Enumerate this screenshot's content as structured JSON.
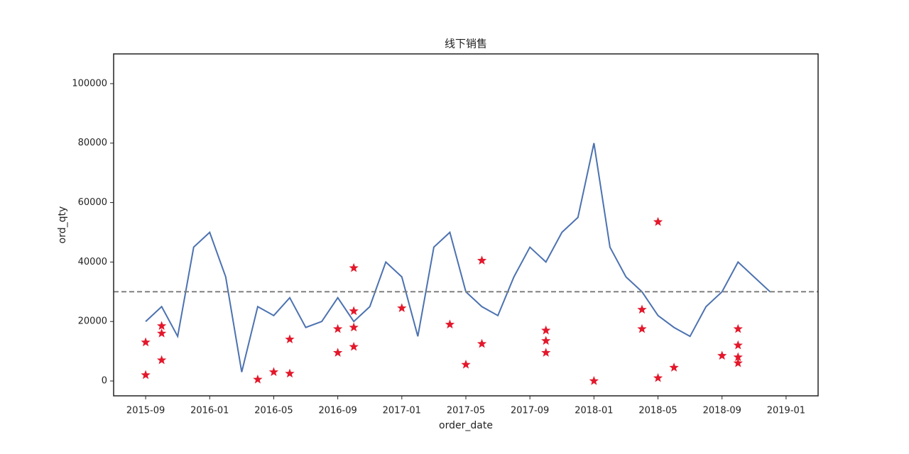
{
  "chart_data": {
    "type": "line",
    "title": "线下销售",
    "x_label": "order_date",
    "y_label": "ord_qty",
    "x": [
      "2015-09",
      "2015-10",
      "2015-11",
      "2015-12",
      "2016-01",
      "2016-02",
      "2016-03",
      "2016-04",
      "2016-05",
      "2016-06",
      "2016-07",
      "2016-08",
      "2016-09",
      "2016-10",
      "2016-11",
      "2016-12",
      "2017-01",
      "2017-02",
      "2017-03",
      "2017-04",
      "2017-05",
      "2017-06",
      "2017-07",
      "2017-08",
      "2017-09",
      "2017-10",
      "2017-11",
      "2017-12",
      "2018-01",
      "2018-02",
      "2018-03",
      "2018-04",
      "2018-05",
      "2018-06",
      "2018-07",
      "2018-08",
      "2018-09",
      "2018-10",
      "2018-11",
      "2018-12"
    ],
    "values": [
      20000,
      25000,
      15000,
      45000,
      50000,
      35000,
      3000,
      25000,
      22000,
      28000,
      18000,
      20000,
      28000,
      20000,
      25000,
      40000,
      35000,
      15000,
      45000,
      50000,
      30000,
      25000,
      22000,
      35000,
      45000,
      40000,
      50000,
      55000,
      80000,
      45000,
      35000,
      30000,
      22000,
      18000,
      15000,
      25000,
      30000,
      40000,
      35000,
      30000
    ],
    "color": "#4c72b0",
    "markers": {
      "color": "#e3182b",
      "x": [
        "2015-09",
        "2015-09",
        "2015-10",
        "2015-10",
        "2015-10",
        "2016-04",
        "2016-05",
        "2016-06",
        "2016-06",
        "2016-09",
        "2016-09",
        "2016-10",
        "2016-10",
        "2016-10",
        "2016-10",
        "2017-01",
        "2017-04",
        "2017-05",
        "2017-06",
        "2017-06",
        "2017-10",
        "2017-10",
        "2017-10",
        "2018-01",
        "2018-04",
        "2018-04",
        "2018-05",
        "2018-05",
        "2018-06",
        "2018-09",
        "2018-10",
        "2018-10",
        "2018-10",
        "2018-10"
      ],
      "values": [
        2000,
        13000,
        18500,
        16000,
        7000,
        500,
        3000,
        2500,
        14000,
        17500,
        9500,
        38000,
        23500,
        18000,
        11500,
        24500,
        19000,
        5500,
        12500,
        40500,
        17000,
        13500,
        9500,
        0,
        24000,
        17500,
        53500,
        1000,
        4500,
        8500,
        17500,
        12000,
        8000,
        6000
      ]
    },
    "hline": {
      "value": 30000,
      "color": "#808080"
    },
    "xlim": [
      "2015-07",
      "2019-03"
    ],
    "xticks": [
      "2015-09",
      "2016-01",
      "2016-05",
      "2016-09",
      "2017-01",
      "2017-05",
      "2017-09",
      "2018-01",
      "2018-05",
      "2018-09",
      "2019-01"
    ],
    "ylim": [
      -5000,
      110000
    ],
    "yticks": [
      0,
      20000,
      40000,
      60000,
      80000,
      100000
    ]
  }
}
